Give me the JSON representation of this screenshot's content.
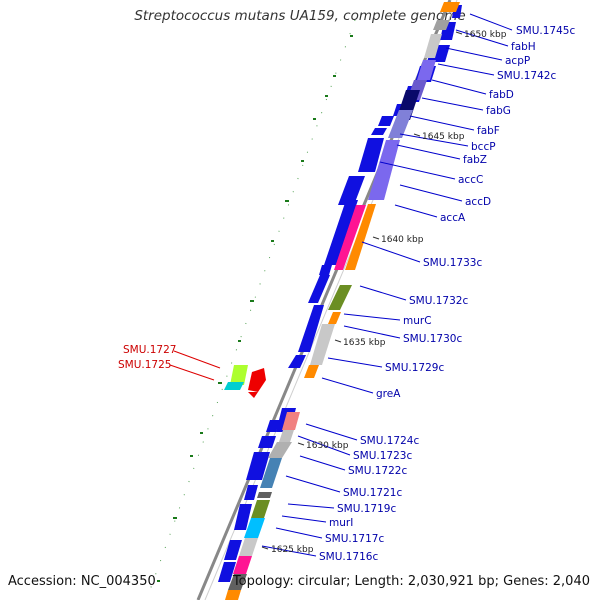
{
  "title": "Streptococcus mutans UA159, complete genome",
  "accession": "Accession: NC_004350",
  "topology": "Topology: circular; Length: 2,030,921 bp; Genes: 2,040",
  "kbp_marks": [
    "1650 kbp",
    "1645 kbp",
    "1640 kbp",
    "1635 kbp",
    "1630 kbp",
    "1625 kbp"
  ],
  "genes_blue": [
    "SMU.1745c",
    "fabH",
    "acpP",
    "SMU.1742c",
    "fabD",
    "fabG",
    "fabF",
    "bccP",
    "fabZ",
    "accC",
    "accD",
    "accA",
    "SMU.1733c",
    "SMU.1732c",
    "murC",
    "SMU.1730c",
    "SMU.1729c",
    "greA",
    "SMU.1724c",
    "SMU.1723c",
    "SMU.1722c",
    "SMU.1721c",
    "SMU.1719c",
    "murI",
    "SMU.1717c",
    "SMU.1716c"
  ],
  "genes_red": [
    "SMU.1727",
    "SMU.1725"
  ],
  "colors": {
    "gene_blue": "#1010e0",
    "label_blue": "#0000aa",
    "label_red": "#cc0000",
    "backbone": "#888888",
    "tick_green": "#1a7a1a"
  }
}
